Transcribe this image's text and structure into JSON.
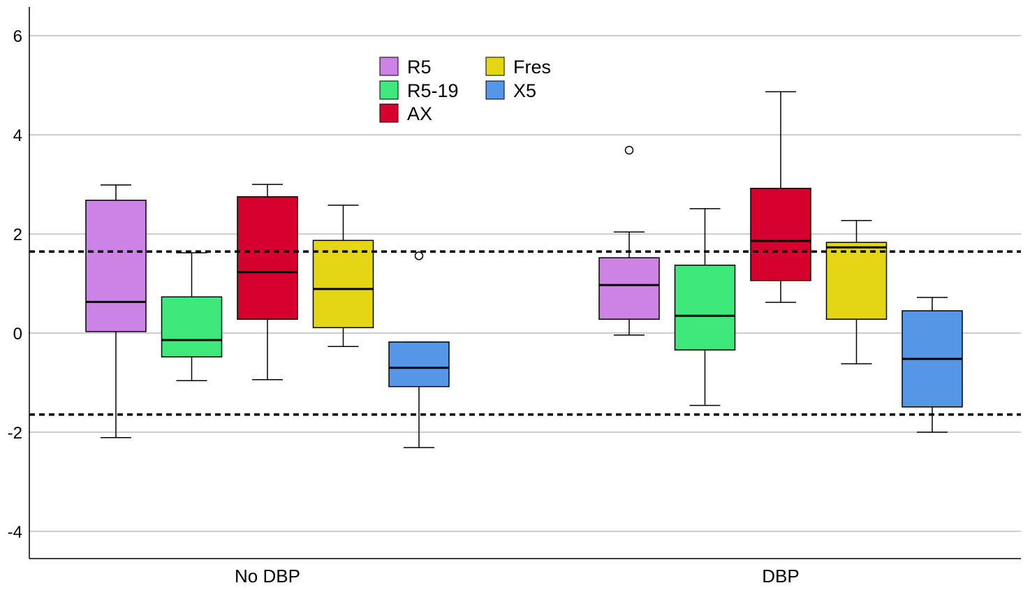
{
  "chart_data": {
    "type": "boxplot",
    "title": "",
    "xlabel": "",
    "ylabel": "",
    "ylim": [
      -4.55,
      6.58
    ],
    "yticks": [
      -4,
      -2,
      0,
      2,
      4,
      6
    ],
    "grid": true,
    "categories": [
      "No DBP",
      "DBP"
    ],
    "legend": {
      "placement": "top-center",
      "entries": [
        "R5",
        "R5-19",
        "AX",
        "Fres",
        "X5"
      ]
    },
    "reference_lines": [
      1.645,
      -1.645
    ],
    "series": [
      {
        "name": "R5",
        "color": "#cd82e6",
        "boxes": [
          {
            "whisker_low": -2.11,
            "q1": 0.03,
            "median": 0.63,
            "q3": 2.68,
            "whisker_high": 2.99,
            "outliers": []
          },
          {
            "whisker_low": -0.04,
            "q1": 0.28,
            "median": 0.97,
            "q3": 1.52,
            "whisker_high": 2.04,
            "outliers": [
              3.69
            ]
          }
        ]
      },
      {
        "name": "R5-19",
        "color": "#3ee87a",
        "boxes": [
          {
            "whisker_low": -0.96,
            "q1": -0.48,
            "median": -0.14,
            "q3": 0.73,
            "whisker_high": 1.62,
            "outliers": []
          },
          {
            "whisker_low": -1.46,
            "q1": -0.34,
            "median": 0.35,
            "q3": 1.37,
            "whisker_high": 2.51,
            "outliers": []
          }
        ]
      },
      {
        "name": "AX",
        "color": "#d6002e",
        "boxes": [
          {
            "whisker_low": -0.94,
            "q1": 0.28,
            "median": 1.23,
            "q3": 2.75,
            "whisker_high": 3.0,
            "outliers": []
          },
          {
            "whisker_low": 0.62,
            "q1": 1.06,
            "median": 1.86,
            "q3": 2.92,
            "whisker_high": 4.87,
            "outliers": []
          }
        ]
      },
      {
        "name": "Fres",
        "color": "#e4d614",
        "boxes": [
          {
            "whisker_low": -0.27,
            "q1": 0.11,
            "median": 0.89,
            "q3": 1.87,
            "whisker_high": 2.58,
            "outliers": []
          },
          {
            "whisker_low": -0.62,
            "q1": 0.28,
            "median": 1.73,
            "q3": 1.83,
            "whisker_high": 2.27,
            "outliers": []
          }
        ]
      },
      {
        "name": "X5",
        "color": "#5597e6",
        "boxes": [
          {
            "whisker_low": -2.31,
            "q1": -1.08,
            "median": -0.7,
            "q3": -0.18,
            "whisker_high": -0.18,
            "outliers": [
              1.56
            ]
          },
          {
            "whisker_low": -2.0,
            "q1": -1.49,
            "median": -0.52,
            "q3": 0.45,
            "whisker_high": 0.72,
            "outliers": []
          }
        ]
      }
    ]
  }
}
